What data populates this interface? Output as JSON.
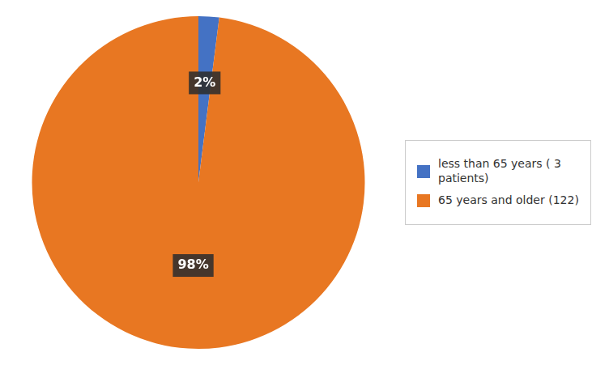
{
  "chart_data": {
    "type": "pie",
    "categories": [
      "less than 65 years ( 3\npatients)",
      "65 years and older (122)"
    ],
    "values": [
      2,
      98
    ],
    "value_labels": [
      "2%",
      "98%"
    ],
    "colors": [
      "#4472C4",
      "#E87722"
    ],
    "data_labels": true,
    "legend": "right"
  }
}
